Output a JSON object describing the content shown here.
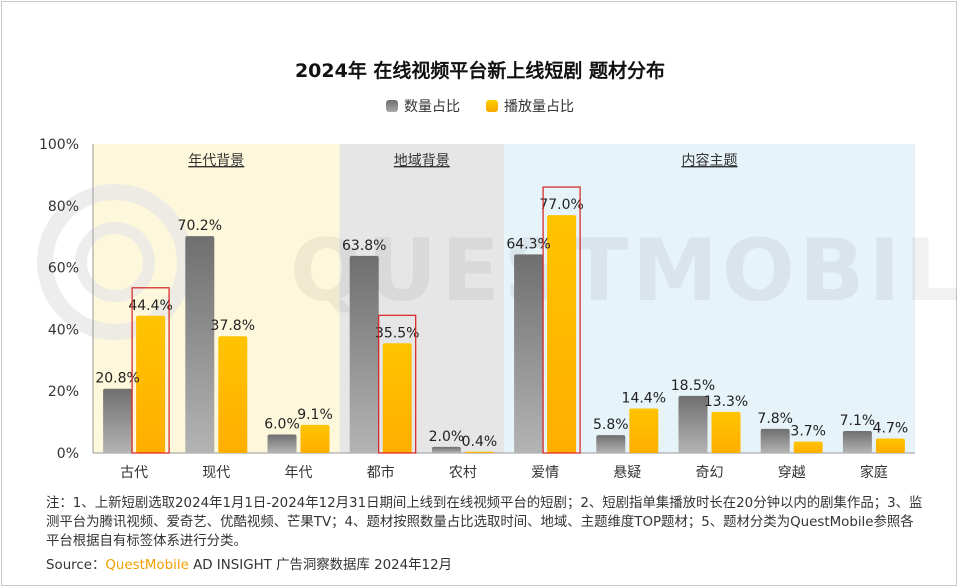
{
  "chart_data": {
    "type": "bar",
    "title": "2024年 在线视频平台新上线短剧 题材分布",
    "categories": [
      "古代",
      "现代",
      "年代",
      "都市",
      "农村",
      "爱情",
      "悬疑",
      "奇幻",
      "穿越",
      "家庭"
    ],
    "series": [
      {
        "name": "数量占比",
        "values": [
          20.8,
          70.2,
          6.0,
          63.8,
          2.0,
          64.3,
          5.8,
          18.5,
          7.8,
          7.1
        ],
        "labels": [
          "20.8%",
          "70.2%",
          "6.0%",
          "63.8%",
          "2.0%",
          "64.3%",
          "5.8%",
          "18.5%",
          "7.8%",
          "7.1%"
        ]
      },
      {
        "name": "播放量占比",
        "values": [
          44.4,
          37.8,
          9.1,
          35.5,
          0.4,
          77.0,
          14.4,
          13.3,
          3.7,
          4.7
        ],
        "labels": [
          "44.4%",
          "37.8%",
          "9.1%",
          "35.5%",
          "0.4%",
          "77.0%",
          "14.4%",
          "13.3%",
          "3.7%",
          "4.7%"
        ]
      }
    ],
    "ylim": [
      0,
      100
    ],
    "yticks": [
      "0%",
      "20%",
      "40%",
      "60%",
      "80%",
      "100%"
    ],
    "ytick_values": [
      0,
      20,
      40,
      60,
      80,
      100
    ],
    "groups": [
      {
        "label": "年代背景",
        "from": 0,
        "to": 2,
        "color": "#fdf7dc"
      },
      {
        "label": "地域背景",
        "from": 3,
        "to": 4,
        "color": "#e6e6e6"
      },
      {
        "label": "内容主题",
        "from": 5,
        "to": 9,
        "color": "#e6f3f9"
      }
    ],
    "highlighted_categories": [
      0,
      3,
      5
    ],
    "colors": {
      "series1": "#8c8c8c",
      "series2": "#ffc000",
      "highlight": "#d81e1e"
    }
  },
  "watermark": "QUESTMOBILE",
  "notes": "注：1、上新短剧选取2024年1月1日-2024年12月31日期间上线到在线视频平台的短剧；2、短剧指单集播放时长在20分钟以内的剧集作品；3、监测平台为腾讯视频、爱奇艺、优酷视频、芒果TV；4、题材按照数量占比选取时间、地域、主题维度TOP题材；5、题材分类为QuestMobile参照各平台根据自有标签体系进行分类。",
  "source": {
    "prefix": "Source：",
    "brand": "QuestMobile",
    "rest": " AD INSIGHT 广告洞察数据库 2024年12月"
  }
}
